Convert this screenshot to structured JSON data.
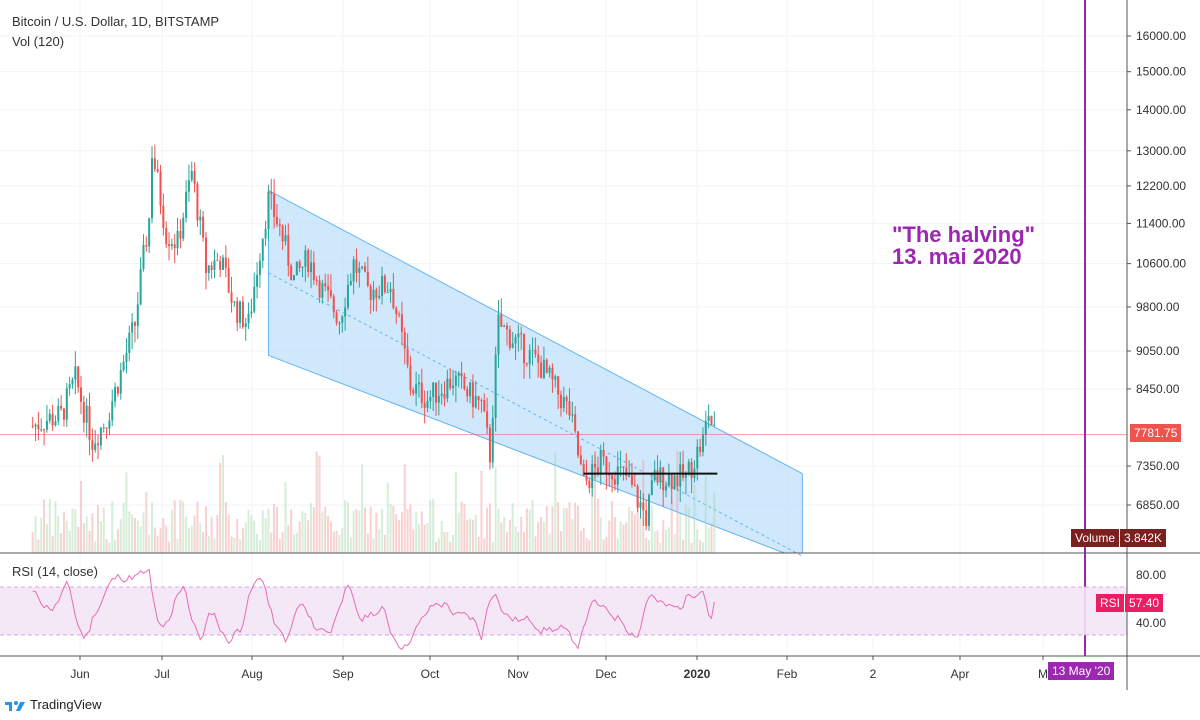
{
  "header": {
    "title": "Bitcoin / U.S. Dollar, 1D, BITSTAMP",
    "volume_label": "Vol (120)",
    "rsi_label": "RSI (14, close)"
  },
  "annotation": {
    "line1": "\"The halving\"",
    "line2": "13. mai 2020",
    "date_tag": "13 May '20",
    "color": "#9c27b0"
  },
  "price_tag": {
    "label": "7781.75",
    "value": 7781.75,
    "color": "#ef5350"
  },
  "volume_tag": {
    "label": "Volume",
    "value": "3.842K",
    "color": "#7b1f1f"
  },
  "rsi_tag": {
    "label": "RSI",
    "value": "57.40",
    "color": "#e91e63"
  },
  "branding": {
    "name": "TradingView"
  },
  "chart_data": {
    "type": "candlestick",
    "symbol": "BTCUSD",
    "exchange": "BITSTAMP",
    "interval": "1D",
    "scale": "log",
    "price_ticks": [
      "16000.00",
      "15000.00",
      "14000.00",
      "13000.00",
      "12200.00",
      "11400.00",
      "10600.00",
      "9800.00",
      "9050.00",
      "8450.00",
      "7350.00",
      "6850.00"
    ],
    "rsi_ticks": [
      "80.00",
      "40.00"
    ],
    "x_ticks": [
      "Jun",
      "Jul",
      "Aug",
      "Sep",
      "Oct",
      "Nov",
      "Dec",
      "2020",
      "Feb",
      "2",
      "Apr",
      "M"
    ],
    "colors": {
      "up": "#26a69a",
      "down": "#ef5350",
      "channel": "#bbdefb",
      "rsi": "#e76cb4",
      "halving": "#9c27b0"
    },
    "closes": [
      {
        "date": "2019-05-15",
        "close": 7900
      },
      {
        "date": "2019-05-20",
        "close": 8000
      },
      {
        "date": "2019-05-25",
        "close": 8050
      },
      {
        "date": "2019-05-30",
        "close": 8600
      },
      {
        "date": "2019-06-05",
        "close": 7700
      },
      {
        "date": "2019-06-10",
        "close": 8000
      },
      {
        "date": "2019-06-15",
        "close": 8700
      },
      {
        "date": "2019-06-20",
        "close": 9500
      },
      {
        "date": "2019-06-25",
        "close": 11500
      },
      {
        "date": "2019-06-26",
        "close": 13000
      },
      {
        "date": "2019-07-01",
        "close": 11200
      },
      {
        "date": "2019-07-05",
        "close": 11000
      },
      {
        "date": "2019-07-10",
        "close": 12500
      },
      {
        "date": "2019-07-15",
        "close": 10500
      },
      {
        "date": "2019-07-20",
        "close": 10700
      },
      {
        "date": "2019-07-25",
        "close": 9800
      },
      {
        "date": "2019-07-30",
        "close": 9500
      },
      {
        "date": "2019-08-06",
        "close": 11900
      },
      {
        "date": "2019-08-10",
        "close": 11300
      },
      {
        "date": "2019-08-15",
        "close": 10300
      },
      {
        "date": "2019-08-20",
        "close": 10700
      },
      {
        "date": "2019-08-25",
        "close": 10100
      },
      {
        "date": "2019-08-31",
        "close": 9600
      },
      {
        "date": "2019-09-05",
        "close": 10600
      },
      {
        "date": "2019-09-10",
        "close": 10100
      },
      {
        "date": "2019-09-18",
        "close": 10200
      },
      {
        "date": "2019-09-25",
        "close": 8500
      },
      {
        "date": "2019-10-01",
        "close": 8300
      },
      {
        "date": "2019-10-10",
        "close": 8600
      },
      {
        "date": "2019-10-20",
        "close": 8200
      },
      {
        "date": "2019-10-23",
        "close": 7500
      },
      {
        "date": "2019-10-26",
        "close": 9500
      },
      {
        "date": "2019-11-01",
        "close": 9200
      },
      {
        "date": "2019-11-10",
        "close": 8800
      },
      {
        "date": "2019-11-20",
        "close": 8100
      },
      {
        "date": "2019-11-25",
        "close": 7100
      },
      {
        "date": "2019-12-01",
        "close": 7400
      },
      {
        "date": "2019-12-10",
        "close": 7200
      },
      {
        "date": "2019-12-17",
        "close": 6700
      },
      {
        "date": "2019-12-20",
        "close": 7200
      },
      {
        "date": "2019-12-31",
        "close": 7200
      },
      {
        "date": "2020-01-06",
        "close": 7700
      },
      {
        "date": "2020-01-08",
        "close": 8100
      },
      {
        "date": "2020-01-10",
        "close": 7781.75
      }
    ],
    "channel": {
      "upper_start": {
        "date": "2019-08-06",
        "price": 12100
      },
      "upper_end": {
        "date": "2020-02-10",
        "price": 7250
      },
      "width_pct": 26
    },
    "support_line": {
      "price": 7250,
      "from": "2019-11-25",
      "to": "2020-01-10"
    },
    "halving_date": "2020-05-13",
    "rsi_last": 57.4
  }
}
